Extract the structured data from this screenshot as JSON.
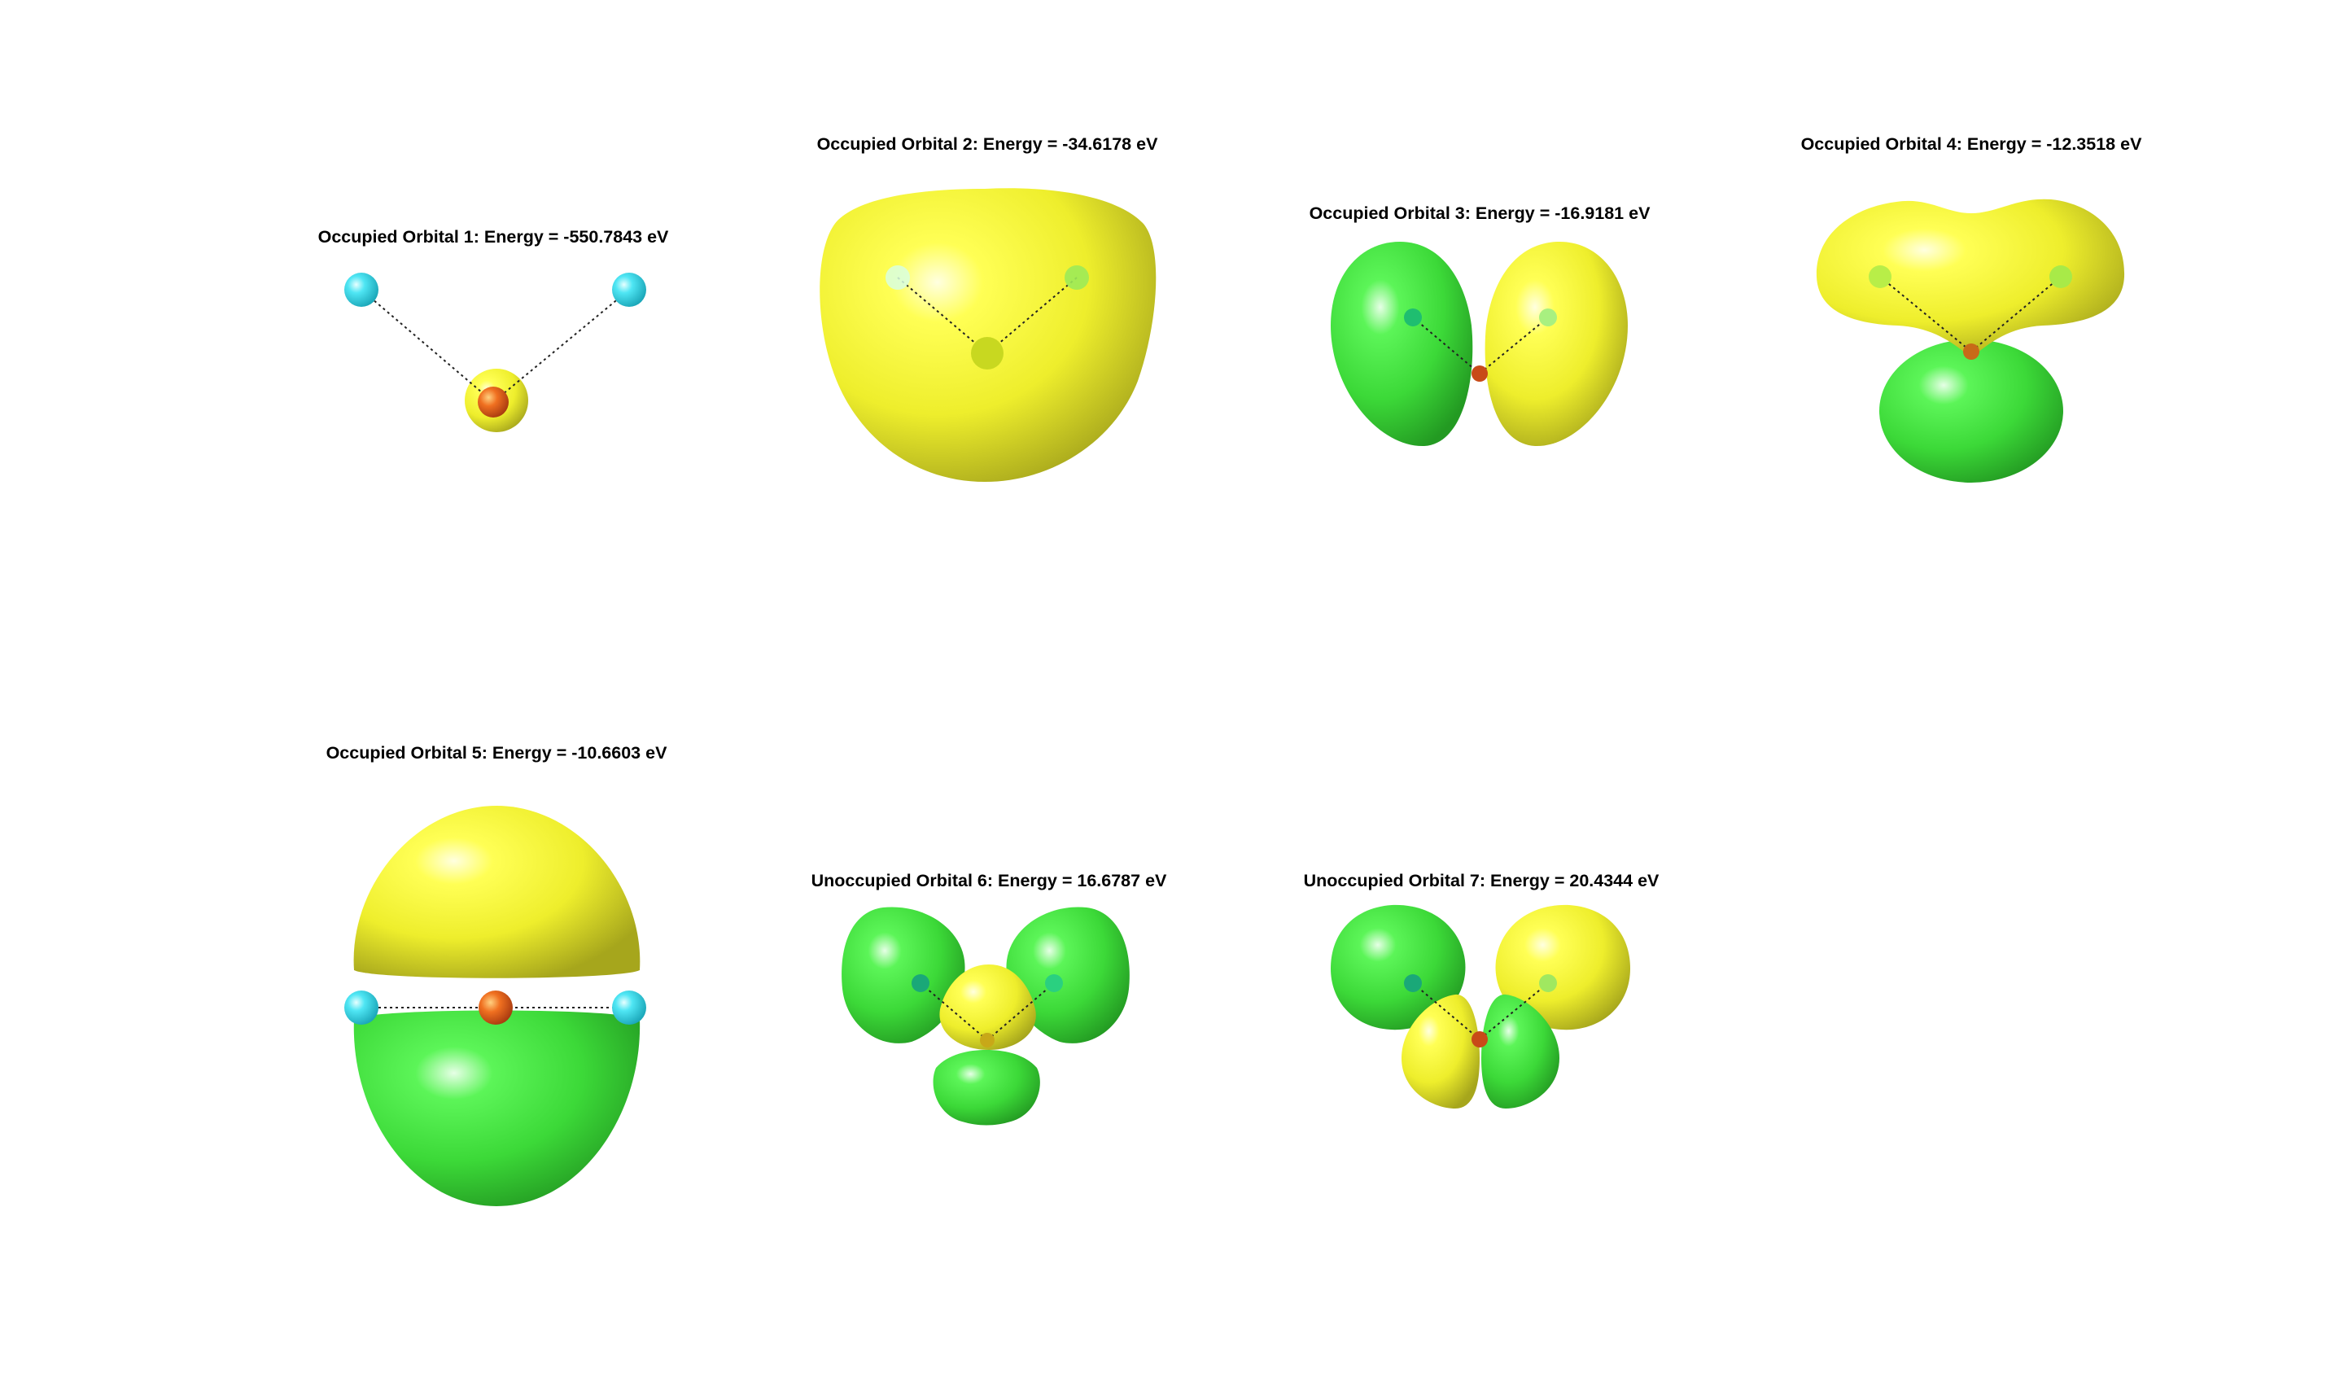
{
  "orbitals": [
    {
      "title": "Occupied Orbital 1: Energy = -550.7843 eV"
    },
    {
      "title": "Occupied Orbital 2: Energy = -34.6178 eV"
    },
    {
      "title": "Occupied Orbital 3: Energy = -16.9181 eV"
    },
    {
      "title": "Occupied Orbital 4: Energy = -12.3518 eV"
    },
    {
      "title": "Occupied Orbital 5: Energy = -10.6603 eV"
    },
    {
      "title": "Unoccupied Orbital 6: Energy = 16.6787 eV"
    },
    {
      "title": "Unoccupied Orbital 7: Energy = 20.4344 eV"
    }
  ],
  "colors": {
    "positive_lobe": "#f2f230",
    "negative_lobe": "#3ee03a",
    "hydrogen_atom": "#38d8ea",
    "oxygen_atom": "#e8561a",
    "bond_line": "#222222",
    "background": "#ffffff"
  }
}
